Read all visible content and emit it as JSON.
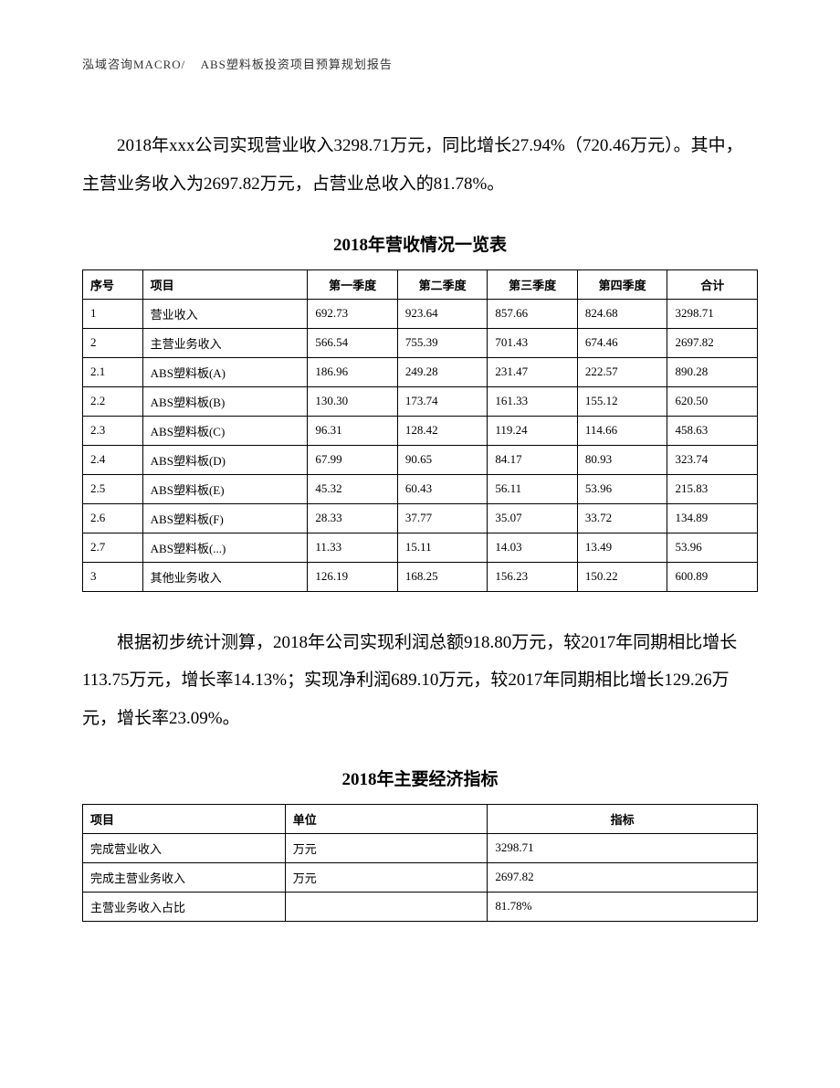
{
  "header": {
    "company": "泓域咨询MACRO/",
    "title": "ABS塑料板投资项目预算规划报告"
  },
  "paragraph1": "2018年xxx公司实现营业收入3298.71万元，同比增长27.94%（720.46万元）。其中，主营业务收入为2697.82万元，占营业总收入的81.78%。",
  "table1": {
    "title": "2018年营收情况一览表",
    "headers": [
      "序号",
      "项目",
      "第一季度",
      "第二季度",
      "第三季度",
      "第四季度",
      "合计"
    ],
    "rows": [
      [
        "1",
        "营业收入",
        "692.73",
        "923.64",
        "857.66",
        "824.68",
        "3298.71"
      ],
      [
        "2",
        "主营业务收入",
        "566.54",
        "755.39",
        "701.43",
        "674.46",
        "2697.82"
      ],
      [
        "2.1",
        "ABS塑料板(A)",
        "186.96",
        "249.28",
        "231.47",
        "222.57",
        "890.28"
      ],
      [
        "2.2",
        "ABS塑料板(B)",
        "130.30",
        "173.74",
        "161.33",
        "155.12",
        "620.50"
      ],
      [
        "2.3",
        "ABS塑料板(C)",
        "96.31",
        "128.42",
        "119.24",
        "114.66",
        "458.63"
      ],
      [
        "2.4",
        "ABS塑料板(D)",
        "67.99",
        "90.65",
        "84.17",
        "80.93",
        "323.74"
      ],
      [
        "2.5",
        "ABS塑料板(E)",
        "45.32",
        "60.43",
        "56.11",
        "53.96",
        "215.83"
      ],
      [
        "2.6",
        "ABS塑料板(F)",
        "28.33",
        "37.77",
        "35.07",
        "33.72",
        "134.89"
      ],
      [
        "2.7",
        "ABS塑料板(...)",
        "11.33",
        "15.11",
        "14.03",
        "13.49",
        "53.96"
      ],
      [
        "3",
        "其他业务收入",
        "126.19",
        "168.25",
        "156.23",
        "150.22",
        "600.89"
      ]
    ]
  },
  "paragraph2": "根据初步统计测算，2018年公司实现利润总额918.80万元，较2017年同期相比增长113.75万元，增长率14.13%；实现净利润689.10万元，较2017年同期相比增长129.26万元，增长率23.09%。",
  "table2": {
    "title": "2018年主要经济指标",
    "headers": [
      "项目",
      "单位",
      "指标"
    ],
    "rows": [
      [
        "完成营业收入",
        "万元",
        "3298.71"
      ],
      [
        "完成主营业务收入",
        "万元",
        "2697.82"
      ],
      [
        "主营业务收入占比",
        "",
        "81.78%"
      ]
    ]
  }
}
